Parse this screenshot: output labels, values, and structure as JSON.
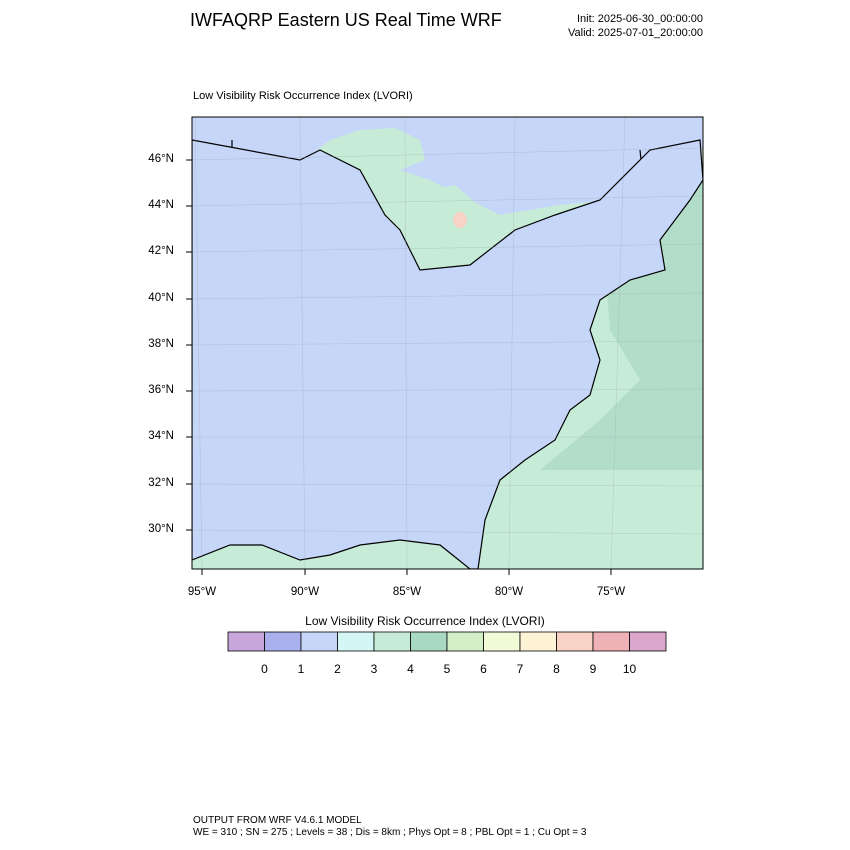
{
  "title": "IWFAQRP Eastern US Real Time WRF",
  "init": "Init: 2025-06-30_00:00:00",
  "valid": "Valid: 2025-07-01_20:00:00",
  "subtitle": "Low Visibility Risk Occurrence Index   (LVORI)",
  "lat_labels": [
    "46°N",
    "44°N",
    "42°N",
    "40°N",
    "38°N",
    "36°N",
    "34°N",
    "32°N",
    "30°N"
  ],
  "lon_labels": [
    "95°W",
    "90°W",
    "85°W",
    "80°W",
    "75°W"
  ],
  "colorbar": {
    "title": "Low Visibility Risk Occurrence Index  (LVORI)",
    "colors": [
      "#c8a6dc",
      "#aab0ee",
      "#c6d6f8",
      "#d4f6f4",
      "#c6ecd8",
      "#a9d9c3",
      "#d3efc8",
      "#f2fbd8",
      "#fdf3d4",
      "#f8d2c4",
      "#eeb2b6",
      "#daa6cc"
    ],
    "labels": [
      "0",
      "1",
      "2",
      "3",
      "4",
      "5",
      "6",
      "7",
      "8",
      "9",
      "10"
    ]
  },
  "footer": {
    "line1": "OUTPUT FROM WRF V4.6.1 MODEL",
    "line2": "WE = 310 ; SN = 275 ; Levels = 38 ; Dis = 8km ; Phys Opt = 8 ; PBL Opt = 1 ; Cu Opt = 3"
  }
}
